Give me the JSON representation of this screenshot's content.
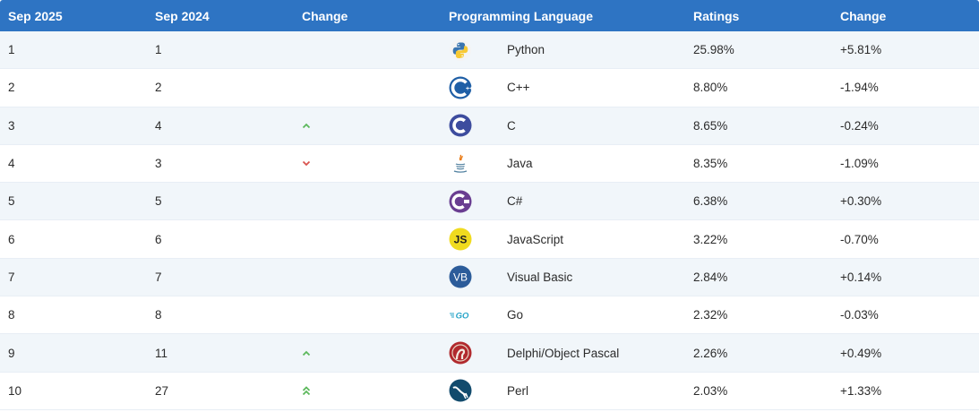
{
  "header": {
    "col_sep2025": "Sep 2025",
    "col_sep2024": "Sep 2024",
    "col_change": "Change",
    "col_language": "Programming Language",
    "col_ratings": "Ratings",
    "col_change2": "Change"
  },
  "colors": {
    "header_bg": "#2e74c3",
    "row_alt_bg": "#f1f6fa",
    "arrow_up": "#5cb85c",
    "arrow_down": "#d9534f"
  },
  "rows": [
    {
      "rank_2025": "1",
      "rank_2024": "1",
      "trend": "none",
      "language": "Python",
      "logo": "python-logo-icon",
      "rating": "25.98%",
      "change": "+5.81%"
    },
    {
      "rank_2025": "2",
      "rank_2024": "2",
      "trend": "none",
      "language": "C++",
      "logo": "cpp-logo-icon",
      "rating": "8.80%",
      "change": "-1.94%"
    },
    {
      "rank_2025": "3",
      "rank_2024": "4",
      "trend": "up",
      "language": "C",
      "logo": "c-logo-icon",
      "rating": "8.65%",
      "change": "-0.24%"
    },
    {
      "rank_2025": "4",
      "rank_2024": "3",
      "trend": "down",
      "language": "Java",
      "logo": "java-logo-icon",
      "rating": "8.35%",
      "change": "-1.09%"
    },
    {
      "rank_2025": "5",
      "rank_2024": "5",
      "trend": "none",
      "language": "C#",
      "logo": "csharp-logo-icon",
      "rating": "6.38%",
      "change": "+0.30%"
    },
    {
      "rank_2025": "6",
      "rank_2024": "6",
      "trend": "none",
      "language": "JavaScript",
      "logo": "javascript-logo-icon",
      "rating": "3.22%",
      "change": "-0.70%"
    },
    {
      "rank_2025": "7",
      "rank_2024": "7",
      "trend": "none",
      "language": "Visual Basic",
      "logo": "visual-basic-logo-icon",
      "rating": "2.84%",
      "change": "+0.14%"
    },
    {
      "rank_2025": "8",
      "rank_2024": "8",
      "trend": "none",
      "language": "Go",
      "logo": "go-logo-icon",
      "rating": "2.32%",
      "change": "-0.03%"
    },
    {
      "rank_2025": "9",
      "rank_2024": "11",
      "trend": "up",
      "language": "Delphi/Object Pascal",
      "logo": "delphi-logo-icon",
      "rating": "2.26%",
      "change": "+0.49%"
    },
    {
      "rank_2025": "10",
      "rank_2024": "27",
      "trend": "double-up",
      "language": "Perl",
      "logo": "perl-logo-icon",
      "rating": "2.03%",
      "change": "+1.33%"
    }
  ],
  "logo_text": {
    "javascript": "JS",
    "visual_basic": "VB",
    "go": "GO"
  }
}
